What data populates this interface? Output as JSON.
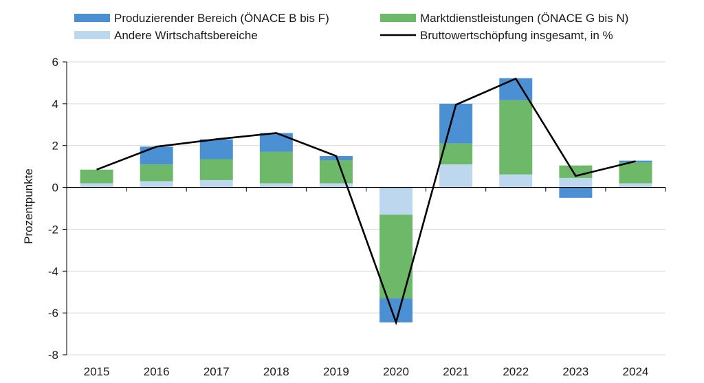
{
  "chart_data": {
    "type": "bar",
    "title": "",
    "xlabel": "",
    "ylabel": "Prozentpunkte",
    "ylim": [
      -8,
      6
    ],
    "yticks": [
      6,
      4,
      2,
      0,
      -2,
      -4,
      -6,
      -8
    ],
    "grid": true,
    "legend_position": "top",
    "categories": [
      "2015",
      "2016",
      "2017",
      "2018",
      "2019",
      "2020",
      "2021",
      "2022",
      "2023",
      "2024"
    ],
    "series": [
      {
        "name": "Andere Wirtschaftsbereiche",
        "kind": "bar",
        "color": "#bdd7ee",
        "values": [
          0.2,
          0.3,
          0.35,
          0.2,
          0.2,
          -1.3,
          1.1,
          0.62,
          0.45,
          0.2
        ]
      },
      {
        "name": "Marktdienstleistungen (ÖNACE G bis N)",
        "kind": "bar",
        "color": "#6eb86a",
        "values": [
          0.65,
          0.8,
          1.0,
          1.5,
          1.1,
          -4.0,
          1.0,
          3.55,
          0.6,
          1.0
        ]
      },
      {
        "name": "Produzierender Bereich (ÖNACE B bis F)",
        "kind": "bar",
        "color": "#4a90d2",
        "values": [
          0.0,
          0.85,
          0.95,
          0.9,
          0.2,
          -1.15,
          1.9,
          1.05,
          -0.5,
          0.08
        ]
      },
      {
        "name": "Bruttowertschöpfung insgesamt, in %",
        "kind": "line",
        "color": "#000000",
        "values": [
          0.85,
          1.95,
          2.3,
          2.6,
          1.5,
          -6.45,
          3.95,
          5.2,
          0.55,
          1.25
        ]
      }
    ],
    "legend": [
      {
        "label": "Produzierender Bereich (ÖNACE B bis F)",
        "symbol": "box",
        "color": "#4a90d2"
      },
      {
        "label": "Marktdienstleistungen (ÖNACE G bis N)",
        "symbol": "box",
        "color": "#6eb86a"
      },
      {
        "label": "Andere Wirtschaftsbereiche",
        "symbol": "box",
        "color": "#bdd7ee"
      },
      {
        "label": "Bruttowertschöpfung insgesamt, in %",
        "symbol": "line",
        "color": "#000000"
      }
    ]
  }
}
